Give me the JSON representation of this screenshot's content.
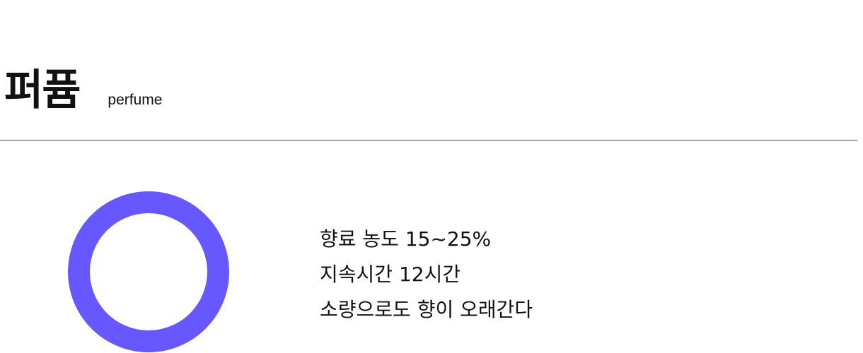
{
  "header": {
    "title_ko": "퍼퓸",
    "title_en": "perfume"
  },
  "icon": {
    "name": "ring-icon",
    "color": "#6658fe"
  },
  "details": [
    "향료 농도 15~25%",
    "지속시간 12시간",
    "소량으로도 향이 오래간다"
  ]
}
